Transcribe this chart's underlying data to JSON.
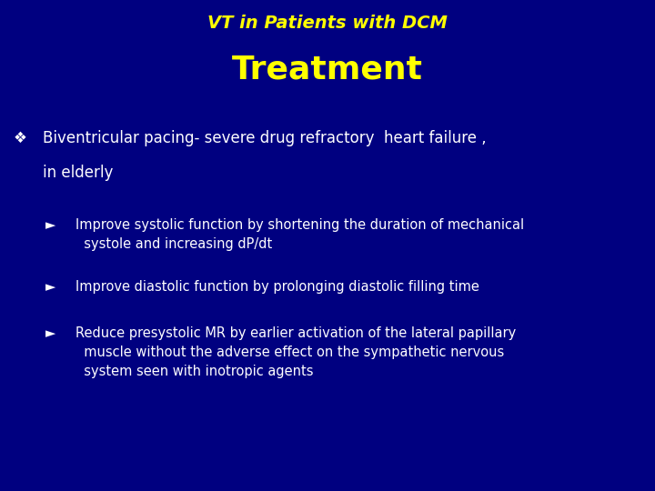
{
  "bg_color": "#000080",
  "title_line1": "VT in Patients with DCM",
  "title_line2": "Treatment",
  "title_line1_color": "#FFFF00",
  "title_line2_color": "#FFFF00",
  "title_line1_fontsize": 14,
  "title_line2_fontsize": 26,
  "bullet_color": "#FFFFFF",
  "bullet_symbol": "❖",
  "bullet_text_line1": "Biventricular pacing- severe drug refractory  heart failure ,",
  "bullet_text_line2": "in elderly",
  "bullet_fontsize": 12,
  "sub_bullets": [
    {
      "text": "Improve systolic function by shortening the duration of mechanical\n  systole and increasing dP/dt"
    },
    {
      "text": "Improve diastolic function by prolonging diastolic filling time"
    },
    {
      "text": "Reduce presystolic MR by earlier activation of the lateral papillary\n  muscle without the adverse effect on the sympathetic nervous\n  system seen with inotropic agents"
    }
  ],
  "sub_bullet_fontsize": 10.5,
  "sub_bullet_color": "#FFFFFF",
  "arrow_symbol": "►"
}
